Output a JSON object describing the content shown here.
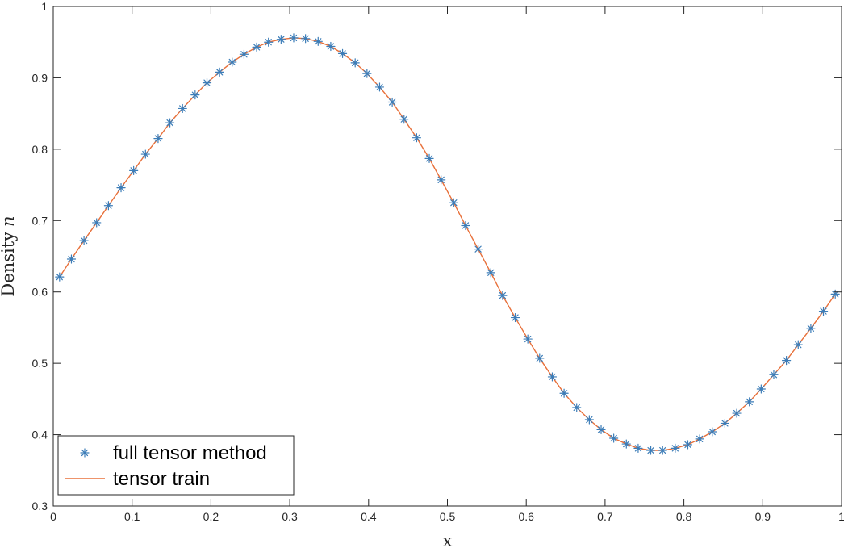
{
  "chart_data": {
    "type": "line",
    "title": "",
    "xlabel": "x",
    "ylabel": {
      "text": "Density",
      "symbol": "n"
    },
    "xlim": [
      0,
      1
    ],
    "ylim": [
      0.3,
      1
    ],
    "xticks": [
      "0",
      "0.1",
      "0.2",
      "0.3",
      "0.4",
      "0.5",
      "0.6",
      "0.7",
      "0.8",
      "0.9",
      "1"
    ],
    "yticks": [
      "0.3",
      "0.4",
      "0.5",
      "0.6",
      "0.7",
      "0.8",
      "0.9",
      "1"
    ],
    "grid": false,
    "legend_position": "bottom-left",
    "series": [
      {
        "name": "full tensor method",
        "style": "marker",
        "marker": "asterisk",
        "color": "#3C7DB8",
        "x": [
          0.008,
          0.023,
          0.039,
          0.055,
          0.07,
          0.086,
          0.102,
          0.117,
          0.133,
          0.148,
          0.164,
          0.18,
          0.195,
          0.211,
          0.227,
          0.242,
          0.258,
          0.273,
          0.289,
          0.305,
          0.32,
          0.336,
          0.352,
          0.367,
          0.383,
          0.398,
          0.414,
          0.43,
          0.445,
          0.461,
          0.477,
          0.492,
          0.508,
          0.523,
          0.539,
          0.555,
          0.57,
          0.586,
          0.602,
          0.617,
          0.633,
          0.648,
          0.664,
          0.68,
          0.695,
          0.711,
          0.727,
          0.742,
          0.758,
          0.773,
          0.789,
          0.805,
          0.82,
          0.836,
          0.852,
          0.867,
          0.883,
          0.898,
          0.914,
          0.93,
          0.945,
          0.961,
          0.977,
          0.992
        ],
        "y": [
          0.621,
          0.646,
          0.672,
          0.697,
          0.721,
          0.746,
          0.77,
          0.793,
          0.815,
          0.837,
          0.857,
          0.876,
          0.893,
          0.908,
          0.922,
          0.933,
          0.943,
          0.95,
          0.954,
          0.956,
          0.955,
          0.951,
          0.944,
          0.934,
          0.921,
          0.906,
          0.887,
          0.866,
          0.842,
          0.816,
          0.787,
          0.757,
          0.725,
          0.693,
          0.66,
          0.627,
          0.595,
          0.564,
          0.534,
          0.507,
          0.481,
          0.458,
          0.438,
          0.421,
          0.407,
          0.395,
          0.387,
          0.381,
          0.378,
          0.378,
          0.381,
          0.386,
          0.394,
          0.404,
          0.416,
          0.43,
          0.446,
          0.464,
          0.484,
          0.504,
          0.526,
          0.549,
          0.573,
          0.597
        ]
      },
      {
        "name": "tensor train",
        "style": "line",
        "color": "#E8703A",
        "x": [
          0.008,
          0.023,
          0.039,
          0.055,
          0.07,
          0.086,
          0.102,
          0.117,
          0.133,
          0.148,
          0.164,
          0.18,
          0.195,
          0.211,
          0.227,
          0.242,
          0.258,
          0.273,
          0.289,
          0.305,
          0.32,
          0.336,
          0.352,
          0.367,
          0.383,
          0.398,
          0.414,
          0.43,
          0.445,
          0.461,
          0.477,
          0.492,
          0.508,
          0.523,
          0.539,
          0.555,
          0.57,
          0.586,
          0.602,
          0.617,
          0.633,
          0.648,
          0.664,
          0.68,
          0.695,
          0.711,
          0.727,
          0.742,
          0.758,
          0.773,
          0.789,
          0.805,
          0.82,
          0.836,
          0.852,
          0.867,
          0.883,
          0.898,
          0.914,
          0.93,
          0.945,
          0.961,
          0.977,
          0.992
        ],
        "y": [
          0.621,
          0.646,
          0.672,
          0.697,
          0.721,
          0.746,
          0.77,
          0.793,
          0.815,
          0.837,
          0.857,
          0.876,
          0.893,
          0.908,
          0.922,
          0.933,
          0.943,
          0.95,
          0.954,
          0.956,
          0.955,
          0.951,
          0.944,
          0.934,
          0.921,
          0.906,
          0.887,
          0.866,
          0.842,
          0.816,
          0.787,
          0.757,
          0.725,
          0.693,
          0.66,
          0.627,
          0.595,
          0.564,
          0.534,
          0.507,
          0.481,
          0.458,
          0.438,
          0.421,
          0.407,
          0.395,
          0.387,
          0.381,
          0.378,
          0.378,
          0.381,
          0.386,
          0.394,
          0.404,
          0.416,
          0.43,
          0.446,
          0.464,
          0.484,
          0.504,
          0.526,
          0.549,
          0.573,
          0.597
        ]
      }
    ]
  }
}
